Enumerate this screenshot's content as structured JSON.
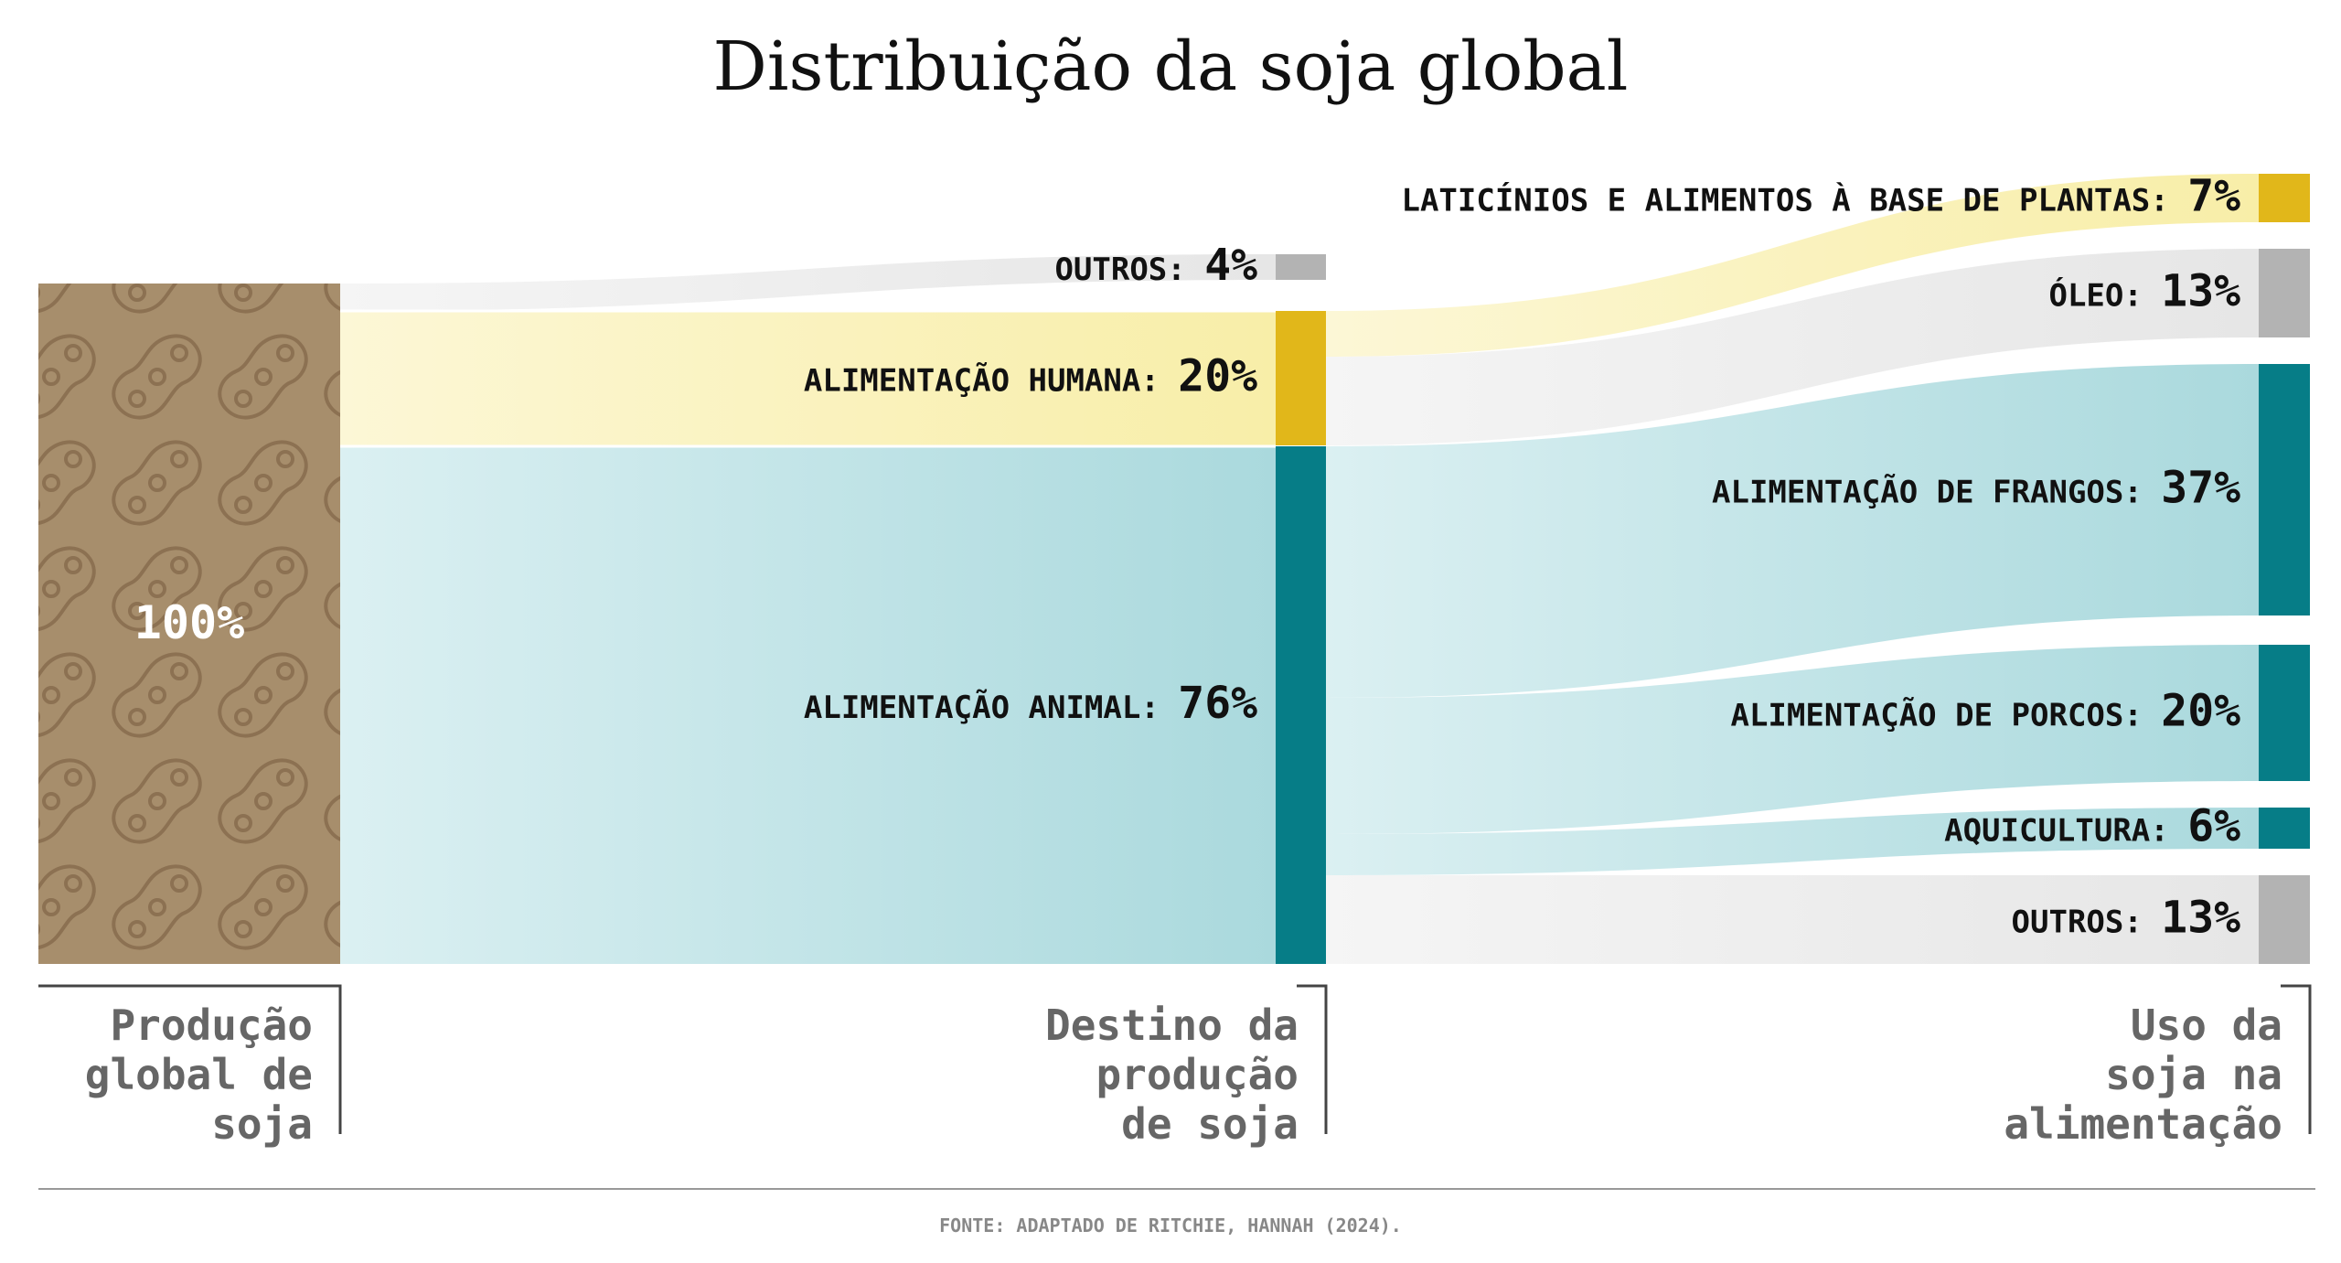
{
  "title": "Distribuição da soja global",
  "source": "FONTE: ADAPTADO DE RITCHIE, HANNAH (2024).",
  "colors": {
    "soy_brown": "#a78e6c",
    "soy_pattern": "#8c7152",
    "yellow": "#e1b71a",
    "yellow_flow": "#f8eea8",
    "teal": "#067d87",
    "teal_flow": "#b3dde1",
    "gray": "#b3b3b3",
    "gray_flow": "#ececec"
  },
  "stages": [
    {
      "id": "production",
      "label": [
        "Produção",
        "global de",
        "soja"
      ]
    },
    {
      "id": "destination",
      "label": [
        "Destino da",
        "produção",
        "de soja"
      ]
    },
    {
      "id": "food_use",
      "label": [
        "Uso da",
        "soja na",
        "alimentação"
      ]
    }
  ],
  "chart_data": {
    "type": "sankey",
    "title": "Distribuição da soja global",
    "unit": "%",
    "nodes": [
      {
        "id": "total",
        "stage": 0,
        "label": "",
        "value": "100%",
        "color": "soy"
      },
      {
        "id": "outros_dest",
        "stage": 1,
        "label": "OUTROS:",
        "value": "4%",
        "color": "gray"
      },
      {
        "id": "humana",
        "stage": 1,
        "label": "ALIMENTAÇÃO HUMANA:",
        "value": "20%",
        "color": "yellow"
      },
      {
        "id": "animal",
        "stage": 1,
        "label": "ALIMENTAÇÃO ANIMAL:",
        "value": "76%",
        "color": "teal"
      },
      {
        "id": "laticinios",
        "stage": 2,
        "label": "LATICÍNIOS E ALIMENTOS À BASE DE PLANTAS:",
        "value": "7%",
        "color": "yellow"
      },
      {
        "id": "oleo",
        "stage": 2,
        "label": "ÓLEO:",
        "value": "13%",
        "color": "gray"
      },
      {
        "id": "frangos",
        "stage": 2,
        "label": "ALIMENTAÇÃO DE FRANGOS:",
        "value": "37%",
        "color": "teal"
      },
      {
        "id": "porcos",
        "stage": 2,
        "label": "ALIMENTAÇÃO DE PORCOS:",
        "value": "20%",
        "color": "teal"
      },
      {
        "id": "aquicultura",
        "stage": 2,
        "label": "AQUICULTURA:",
        "value": "6%",
        "color": "teal"
      },
      {
        "id": "outros_uso",
        "stage": 2,
        "label": "OUTROS:",
        "value": "13%",
        "color": "gray"
      }
    ],
    "links": [
      {
        "source": "total",
        "target": "outros_dest",
        "value": 4
      },
      {
        "source": "total",
        "target": "humana",
        "value": 20
      },
      {
        "source": "total",
        "target": "animal",
        "value": 76
      },
      {
        "source": "humana",
        "target": "laticinios",
        "value": 7
      },
      {
        "source": "humana",
        "target": "oleo",
        "value": 13
      },
      {
        "source": "animal",
        "target": "frangos",
        "value": 37
      },
      {
        "source": "animal",
        "target": "porcos",
        "value": 20
      },
      {
        "source": "animal",
        "target": "aquicultura",
        "value": 6
      },
      {
        "source": "animal",
        "target": "outros_uso",
        "value": 13
      }
    ]
  }
}
